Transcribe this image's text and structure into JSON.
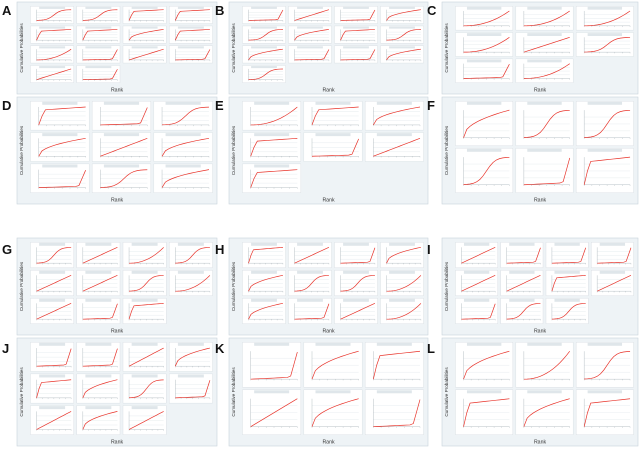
{
  "figure": {
    "rank_label": "Rank",
    "cum_label": "Cumulative Probabilities",
    "line_color": "#e8332a",
    "panel_bg": "#eef3f6",
    "sub_bg": "#ffffff",
    "grid_color": "#cfd8de",
    "panels": [
      {
        "letter": "A",
        "count": 14,
        "sizes": [
          4,
          4,
          4,
          2
        ]
      },
      {
        "letter": "B",
        "count": 13,
        "sizes": [
          4,
          4,
          4,
          1
        ]
      },
      {
        "letter": "C",
        "count": 8,
        "sizes": [
          3,
          3,
          2
        ]
      },
      {
        "letter": "D",
        "count": 9,
        "sizes": [
          3,
          3,
          3
        ]
      },
      {
        "letter": "E",
        "count": 7,
        "sizes": [
          3,
          3,
          1
        ]
      },
      {
        "letter": "F",
        "count": 6,
        "sizes": [
          3,
          3
        ]
      },
      {
        "letter": "G",
        "count": 11,
        "sizes": [
          4,
          4,
          3
        ]
      },
      {
        "letter": "H",
        "count": 12,
        "sizes": [
          4,
          4,
          4
        ]
      },
      {
        "letter": "I",
        "count": 11,
        "sizes": [
          4,
          4,
          3
        ]
      },
      {
        "letter": "J",
        "count": 11,
        "sizes": [
          4,
          4,
          3
        ]
      },
      {
        "letter": "K",
        "count": 6,
        "sizes": [
          3,
          3
        ]
      },
      {
        "letter": "L",
        "count": 6,
        "sizes": [
          3,
          3
        ]
      }
    ]
  }
}
